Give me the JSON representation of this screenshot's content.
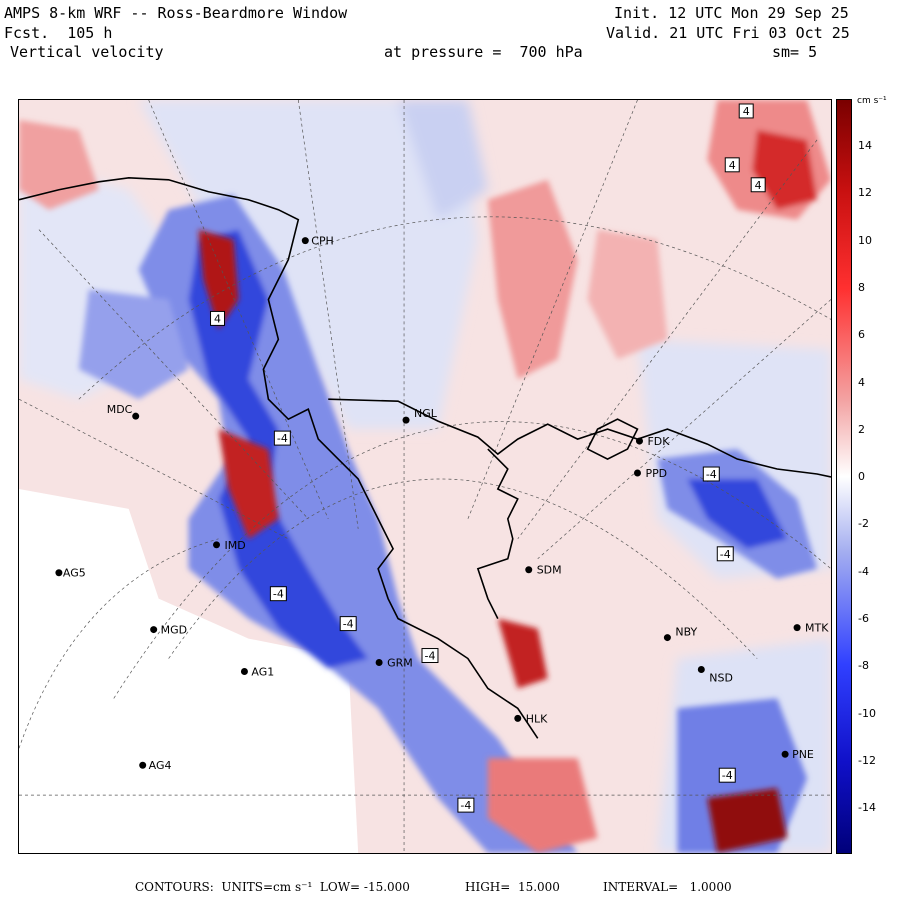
{
  "header": {
    "model_title": "AMPS 8-km WRF -- Ross-Beardmore Window",
    "init": "Init. 12 UTC Mon 29 Sep 25",
    "forecast": "Fcst.  105 h",
    "valid": "Valid. 21 UTC Fri 03 Oct 25",
    "field": "Vertical velocity",
    "pressure": "at pressure =  700 hPa",
    "smoothing": "sm= 5"
  },
  "colorbar": {
    "units": "cm s⁻¹",
    "ticks": [
      "14",
      "12",
      "10",
      "8",
      "6",
      "4",
      "2",
      "0",
      "-2",
      "-4",
      "-6",
      "-8",
      "-10",
      "-12",
      "-14"
    ],
    "colors": {
      "max": "#7a0000",
      "pos": "#e02020",
      "light_pos": "#f6d8d8",
      "light_neg": "#d8def4",
      "neg": "#2030e0",
      "min": "#00007a"
    }
  },
  "stations": [
    {
      "id": "cph",
      "label": "CPH"
    },
    {
      "id": "mdc",
      "label": "MDC"
    },
    {
      "id": "ngl",
      "label": "NGL"
    },
    {
      "id": "fdk",
      "label": "FDK"
    },
    {
      "id": "ppd",
      "label": "PPD"
    },
    {
      "id": "imd",
      "label": "IMD"
    },
    {
      "id": "ag5",
      "label": "AG5"
    },
    {
      "id": "sdm",
      "label": "SDM"
    },
    {
      "id": "mgd",
      "label": "MGD"
    },
    {
      "id": "nby",
      "label": "NBY"
    },
    {
      "id": "mtk",
      "label": "MTK"
    },
    {
      "id": "ag1",
      "label": "AG1"
    },
    {
      "id": "grm",
      "label": "GRM"
    },
    {
      "id": "nsd",
      "label": "NSD"
    },
    {
      "id": "hlk",
      "label": "HLK"
    },
    {
      "id": "pne",
      "label": "PNE"
    },
    {
      "id": "ag4",
      "label": "AG4"
    }
  ],
  "contour_labels": [
    "4",
    "4",
    "4",
    "4",
    "-4",
    "-4",
    "-4",
    "-4",
    "-4",
    "-4",
    "-4",
    "-4"
  ],
  "footer": {
    "contours": "CONTOURS:  UNITS=cm s⁻¹  LOW= -15.000",
    "high": "HIGH=  15.000",
    "interval": "INTERVAL=   1.0000"
  }
}
